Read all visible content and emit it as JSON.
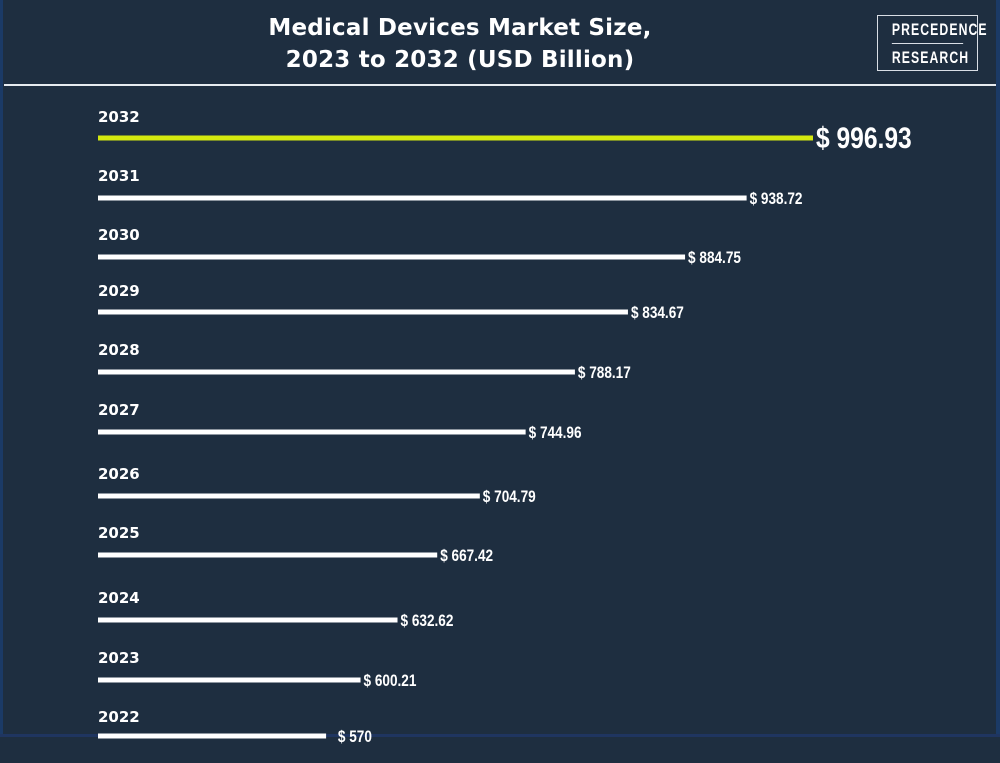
{
  "header": {
    "title_line1": "Medical Devices Market Size,",
    "title_line2": "2023 to 2032 (USD Billion)",
    "logo_line1": "PRECEDENCE",
    "logo_line2": "RESEARCH"
  },
  "colors": {
    "background": "#1e2e40",
    "bar_default": "#ffffff",
    "bar_highlight": "#d4e80f",
    "text": "#ffffff"
  },
  "chart_data": {
    "type": "bar",
    "orientation": "horizontal",
    "title": "Medical Devices Market Size, 2023 to 2032 (USD Billion)",
    "xlabel": "",
    "ylabel": "",
    "grid": false,
    "legend": "none",
    "value_prefix": "$ ",
    "highlight_category": "2032",
    "categories": [
      "2032",
      "2031",
      "2030",
      "2029",
      "2028",
      "2027",
      "2026",
      "2025",
      "2024",
      "2023",
      "2022"
    ],
    "values": [
      996.93,
      938.72,
      884.75,
      834.67,
      788.17,
      744.96,
      704.79,
      667.42,
      632.62,
      600.21,
      570
    ],
    "value_labels": [
      "$ 996.93",
      "$ 938.72",
      "$ 884.75",
      "$ 834.67",
      "$ 788.17",
      "$ 744.96",
      "$ 704.79",
      "$ 667.42",
      "$ 632.62",
      "$ 600.21",
      "$ 570"
    ],
    "xlim": [
      370,
      996.93
    ]
  }
}
